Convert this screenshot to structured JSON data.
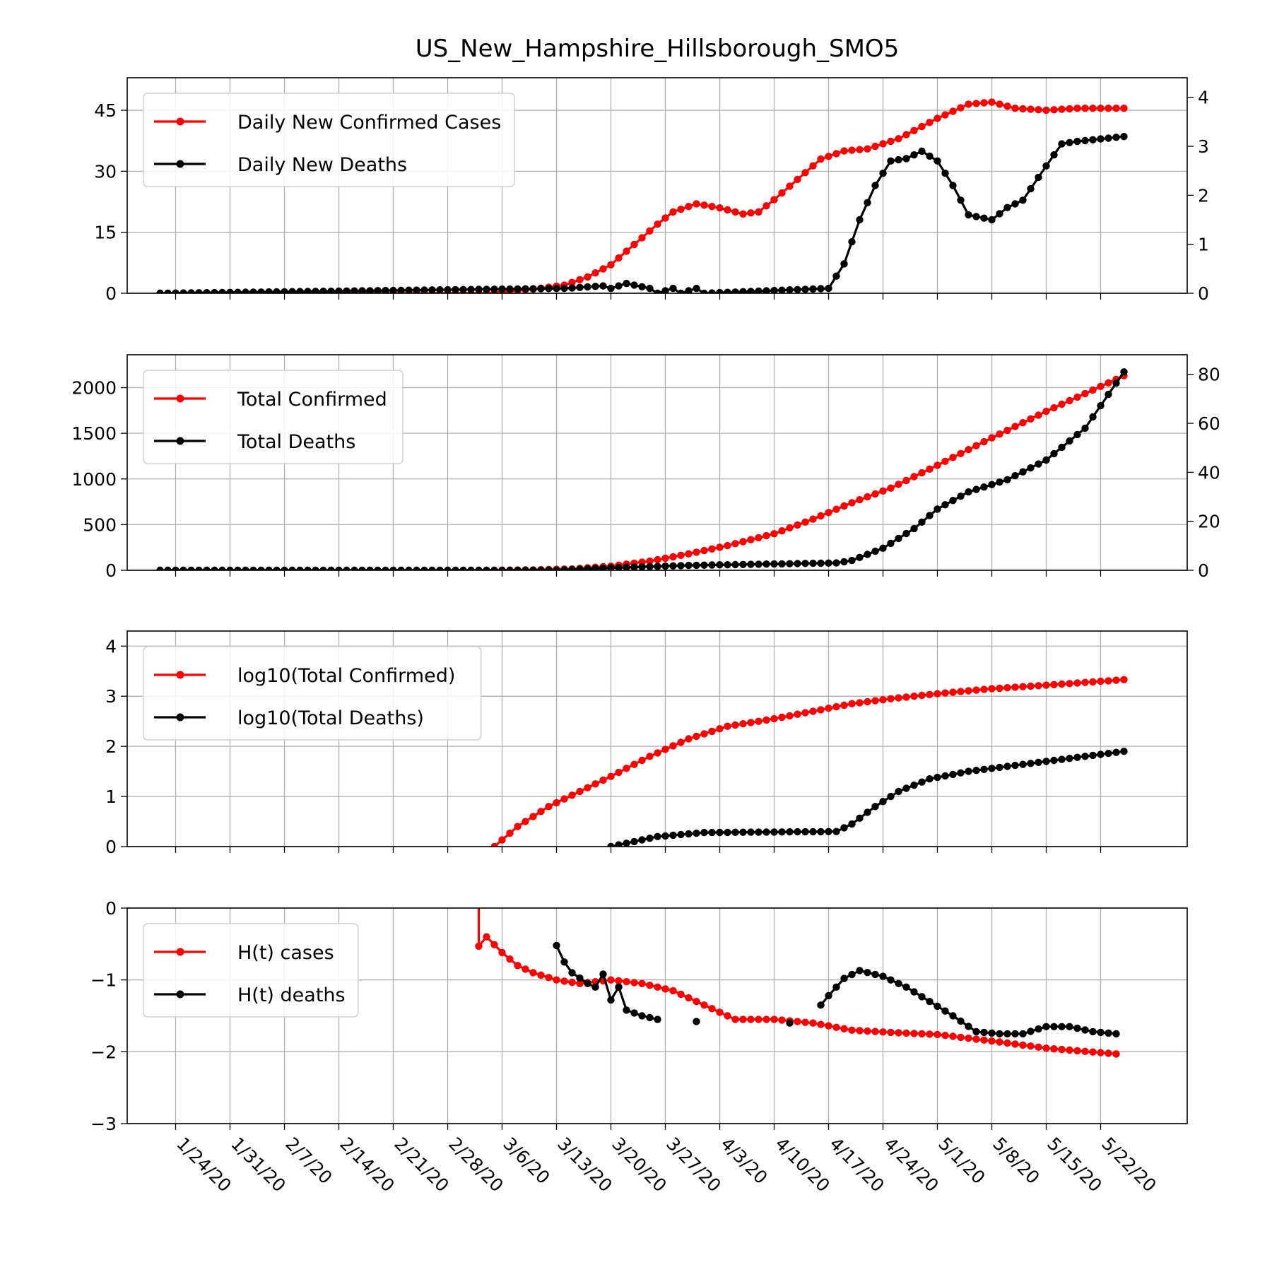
{
  "title": "US_New_Hampshire_Hillsborough_SMO5",
  "colors": {
    "cases": "#ff0000",
    "deaths": "#000000",
    "grid": "#b0b0b0"
  },
  "x_axis": {
    "start_date": "1/22/20",
    "tick_labels": [
      "1/24/20",
      "1/31/20",
      "2/7/20",
      "2/14/20",
      "2/21/20",
      "2/28/20",
      "3/6/20",
      "3/13/20",
      "3/20/20",
      "3/27/20",
      "4/3/20",
      "4/10/20",
      "4/17/20",
      "4/24/20",
      "5/1/20",
      "5/8/20",
      "5/15/20",
      "5/22/20"
    ]
  },
  "chart_data": [
    {
      "type": "line",
      "legend": [
        "Daily New Confirmed Cases",
        "Daily New Deaths"
      ],
      "legend_position": "top-left",
      "grid": true,
      "left_axis": {
        "ylim": [
          0,
          53
        ],
        "ticks": [
          0,
          15,
          30,
          45
        ]
      },
      "right_axis": {
        "ylim": [
          0,
          4.4
        ],
        "ticks": [
          0,
          1,
          2,
          3,
          4
        ]
      },
      "series": [
        {
          "name": "Daily New Confirmed Cases",
          "axis": "left",
          "color": "#ff0000",
          "x": [
            "1/22/20",
            "3/4/20",
            "3/10/20",
            "3/14/20",
            "3/17/20",
            "3/20/20",
            "3/23/20",
            "3/26/20",
            "3/28/20",
            "3/31/20",
            "4/3/20",
            "4/6/20",
            "4/8/20",
            "4/10/20",
            "4/13/20",
            "4/16/20",
            "4/19/20",
            "4/22/20",
            "4/26/20",
            "5/1/20",
            "5/5/20",
            "5/8/20",
            "5/11/20",
            "5/15/20",
            "5/19/20",
            "5/22/20",
            "5/25/20"
          ],
          "y": [
            0,
            0,
            1,
            2,
            4,
            7,
            12,
            17,
            20,
            22,
            21,
            19.5,
            20,
            23,
            28,
            33,
            35,
            35.5,
            38,
            43,
            46.5,
            47,
            45.5,
            45,
            45.5,
            45.5,
            45.5
          ]
        },
        {
          "name": "Daily New Deaths",
          "axis": "right",
          "color": "#000000",
          "x": [
            "1/22/20",
            "3/14/20",
            "3/19/20",
            "3/20/20",
            "3/22/20",
            "3/25/20",
            "3/26/20",
            "3/28/20",
            "3/29/20",
            "3/31/20",
            "4/1/20",
            "4/17/20",
            "4/19/20",
            "4/21/20",
            "4/23/20",
            "4/25/20",
            "4/27/20",
            "4/29/20",
            "5/1/20",
            "5/3/20",
            "5/5/20",
            "5/8/20",
            "5/10/20",
            "5/12/20",
            "5/15/20",
            "5/17/20",
            "5/19/20",
            "5/22/20",
            "5/25/20"
          ],
          "y": [
            0,
            0.1,
            0.15,
            0.1,
            0.2,
            0.1,
            0,
            0.1,
            0,
            0.1,
            0,
            0.1,
            0.6,
            1.5,
            2.2,
            2.7,
            2.75,
            2.9,
            2.7,
            2.2,
            1.6,
            1.5,
            1.75,
            1.9,
            2.6,
            3.05,
            3.1,
            3.15,
            3.2
          ]
        }
      ]
    },
    {
      "type": "line",
      "legend": [
        "Total Confirmed",
        "Total Deaths"
      ],
      "legend_position": "top-left",
      "grid": true,
      "left_axis": {
        "ylim": [
          0,
          2360
        ],
        "ticks": [
          0,
          500,
          1000,
          1500,
          2000
        ]
      },
      "right_axis": {
        "ylim": [
          0,
          88
        ],
        "ticks": [
          0,
          20,
          40,
          60,
          80
        ]
      },
      "series": [
        {
          "name": "Total Confirmed",
          "axis": "left",
          "color": "#ff0000",
          "x": [
            "1/22/20",
            "3/4/20",
            "3/10/20",
            "3/15/20",
            "3/20/20",
            "3/25/20",
            "3/30/20",
            "4/4/20",
            "4/10/20",
            "4/15/20",
            "4/20/20",
            "4/25/20",
            "5/1/20",
            "5/8/20",
            "5/15/20",
            "5/25/20"
          ],
          "y": [
            0,
            0,
            5,
            15,
            45,
            100,
            180,
            270,
            400,
            560,
            740,
            900,
            1150,
            1450,
            1740,
            2130
          ]
        },
        {
          "name": "Total Deaths",
          "axis": "right",
          "color": "#000000",
          "x": [
            "1/22/20",
            "3/13/20",
            "3/20/20",
            "3/30/20",
            "4/18/20",
            "4/20/20",
            "4/24/20",
            "4/28/20",
            "5/1/20",
            "5/5/20",
            "5/10/20",
            "5/15/20",
            "5/20/20",
            "5/25/20"
          ],
          "y": [
            0,
            0,
            1,
            2,
            3,
            4,
            9,
            17,
            25,
            32,
            37,
            45,
            58,
            81
          ]
        }
      ]
    },
    {
      "type": "line",
      "legend": [
        "log10(Total Confirmed)",
        "log10(Total Deaths)"
      ],
      "legend_position": "top-left",
      "grid": true,
      "left_axis": {
        "ylim": [
          0,
          4.3
        ],
        "ticks": [
          0,
          1,
          2,
          3,
          4
        ]
      },
      "series": [
        {
          "name": "log10(Total Confirmed)",
          "axis": "left",
          "color": "#ff0000",
          "x": [
            "3/5/20",
            "3/8/20",
            "3/12/20",
            "3/16/20",
            "3/20/20",
            "3/25/20",
            "3/30/20",
            "4/4/20",
            "4/10/20",
            "4/15/20",
            "4/20/20",
            "4/25/20",
            "5/1/20",
            "5/8/20",
            "5/15/20",
            "5/25/20"
          ],
          "y": [
            0,
            0.4,
            0.8,
            1.1,
            1.4,
            1.8,
            2.15,
            2.4,
            2.55,
            2.7,
            2.85,
            2.95,
            3.05,
            3.15,
            3.22,
            3.33
          ]
        },
        {
          "name": "log10(Total Deaths)",
          "axis": "left",
          "color": "#000000",
          "x": [
            "3/20/20",
            "3/23/20",
            "3/26/20",
            "4/1/20",
            "4/18/20",
            "4/20/20",
            "4/23/20",
            "4/26/20",
            "4/30/20",
            "5/5/20",
            "5/10/20",
            "5/15/20",
            "5/20/20",
            "5/25/20"
          ],
          "y": [
            0,
            0.1,
            0.2,
            0.28,
            0.3,
            0.45,
            0.8,
            1.1,
            1.35,
            1.5,
            1.6,
            1.7,
            1.8,
            1.9
          ]
        }
      ]
    },
    {
      "type": "line",
      "legend": [
        "H(t) cases",
        "H(t) deaths"
      ],
      "legend_position": "top-left",
      "grid": true,
      "left_axis": {
        "ylim": [
          -3,
          0
        ],
        "ticks": [
          0,
          -1,
          -2,
          -3
        ]
      },
      "series": [
        {
          "name": "H(t) cases",
          "axis": "left",
          "color": "#ff0000",
          "x": [
            "3/3/20",
            "3/3/20",
            "3/4/20",
            "3/6/20",
            "3/8/20",
            "3/10/20",
            "3/13/20",
            "3/16/20",
            "3/20/20",
            "3/24/20",
            "3/28/20",
            "4/1/20",
            "4/5/20",
            "4/10/20",
            "4/15/20",
            "4/20/20",
            "4/25/20",
            "5/1/20",
            "5/8/20",
            "5/15/20",
            "5/24/20"
          ],
          "y": [
            0.05,
            -0.53,
            -0.4,
            -0.62,
            -0.8,
            -0.9,
            -1.0,
            -1.05,
            -1.0,
            -1.05,
            -1.15,
            -1.35,
            -1.55,
            -1.55,
            -1.6,
            -1.7,
            -1.73,
            -1.76,
            -1.85,
            -1.95,
            -2.03
          ]
        },
        {
          "name": "H(t) deaths",
          "axis": "left",
          "color": "#000000",
          "segments": [
            {
              "x": [
                "3/13/20",
                "3/14/20",
                "3/15/20",
                "3/17/20",
                "3/18/20",
                "3/19/20",
                "3/20/20",
                "3/21/20",
                "3/22/20",
                "3/24/20",
                "3/26/20"
              ],
              "y": [
                -0.52,
                -0.75,
                -0.9,
                -1.05,
                -1.1,
                -0.92,
                -1.28,
                -1.1,
                -1.42,
                -1.5,
                -1.55
              ]
            },
            {
              "x": [
                "3/31/20"
              ],
              "y": [
                -1.58
              ]
            },
            {
              "x": [
                "4/12/20"
              ],
              "y": [
                -1.6
              ]
            },
            {
              "x": [
                "4/16/20",
                "4/17/20",
                "4/19/20",
                "4/21/20",
                "4/24/20",
                "4/27/20",
                "4/30/20",
                "5/3/20",
                "5/6/20",
                "5/9/20",
                "5/12/20",
                "5/15/20",
                "5/18/20",
                "5/21/20",
                "5/24/20"
              ],
              "y": [
                -1.35,
                -1.22,
                -0.98,
                -0.87,
                -0.95,
                -1.1,
                -1.3,
                -1.5,
                -1.72,
                -1.75,
                -1.75,
                -1.65,
                -1.65,
                -1.72,
                -1.75
              ]
            }
          ]
        }
      ]
    }
  ]
}
